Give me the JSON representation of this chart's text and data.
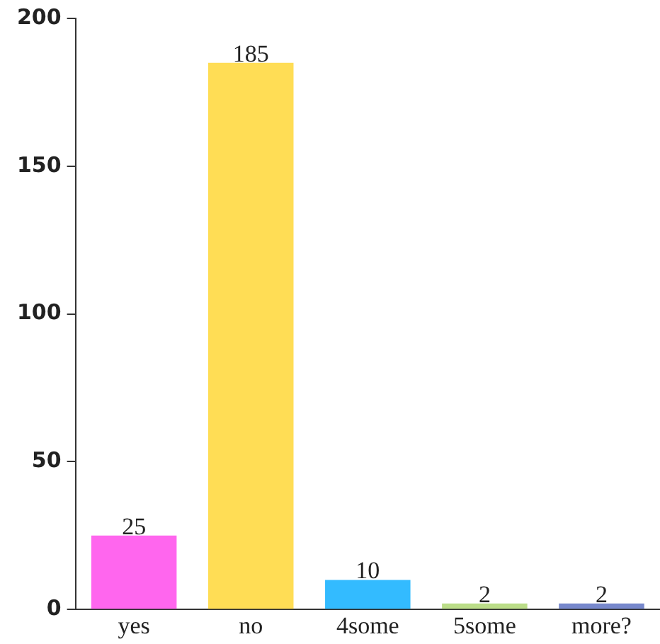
{
  "chart_data": {
    "type": "bar",
    "categories": [
      "yes",
      "no",
      "4some",
      "5some",
      "more?"
    ],
    "values": [
      25,
      185,
      10,
      2,
      2
    ],
    "colors": [
      "#ff66ee",
      "#ffdd55",
      "#33bbff",
      "#bbdd88",
      "#7788cc"
    ],
    "ylim": [
      0,
      200
    ],
    "yticks": [
      0,
      50,
      100,
      150,
      200
    ],
    "grid": false,
    "legend": false,
    "data_labels": true
  }
}
